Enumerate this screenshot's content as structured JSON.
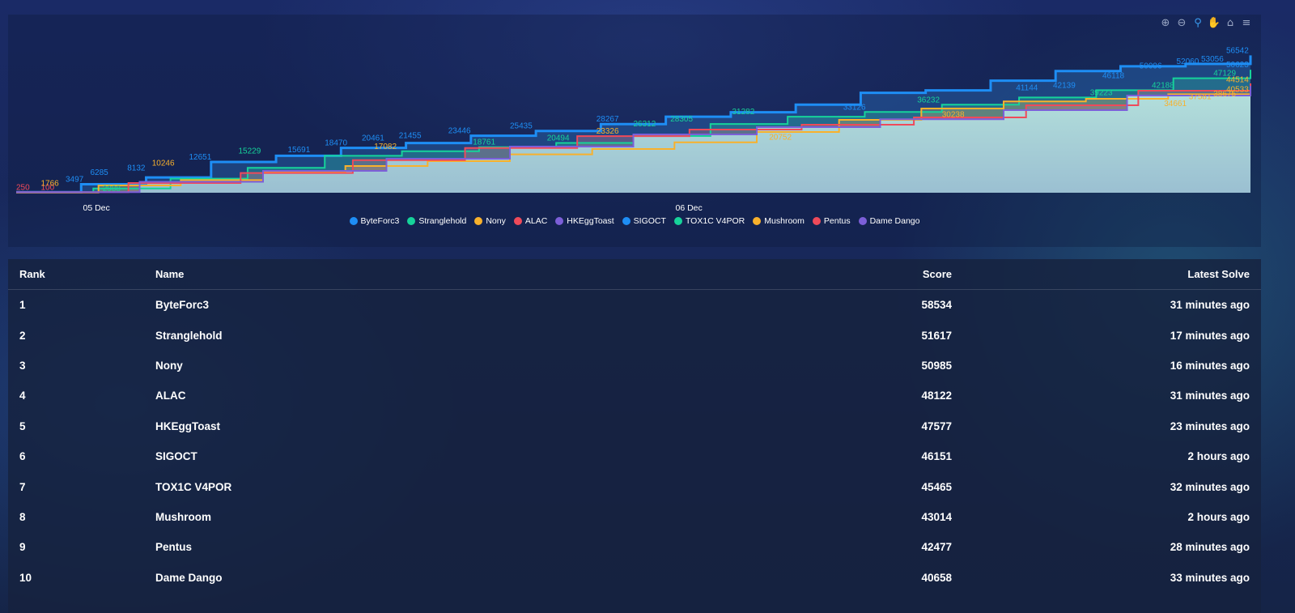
{
  "toolbar": {
    "icons": [
      "zoom-in-icon",
      "zoom-out-icon",
      "selection-zoom-icon",
      "pan-icon",
      "reset-home-icon",
      "menu-icon"
    ]
  },
  "chart_data": {
    "type": "area",
    "x_ticks": [
      "05 Dec",
      "06 Dec"
    ],
    "legend": [
      "ByteForc3",
      "Stranglehold",
      "Nony",
      "ALAC",
      "HKEggToast",
      "SIGOCT",
      "TOX1C V4POR",
      "Mushroom",
      "Pentus",
      "Dame Dango"
    ],
    "colors": {
      "ByteForc3": "#1e8ef5",
      "Stranglehold": "#16d39a",
      "Nony": "#f8b12c",
      "ALAC": "#ef4a5a",
      "HKEggToast": "#7c5fd8",
      "SIGOCT": "#1e8ef5",
      "TOX1C V4POR": "#16d39a",
      "Mushroom": "#f8b12c",
      "Pentus": "#ef4a5a",
      "Dame Dango": "#7c5fd8"
    },
    "series": [
      {
        "name": "ByteForc3",
        "values": [
          250,
          3497,
          6285,
          12651,
          15229,
          18470,
          20461,
          23446,
          25435,
          28267,
          31282,
          33126,
          36232,
          41144,
          42139,
          46118,
          50096,
          52060,
          53056,
          56542
        ]
      },
      {
        "name": "Stranglehold",
        "values": [
          250,
          1766,
          5800,
          10246,
          15229,
          17082,
          18761,
          20494,
          23326,
          28305,
          31282,
          33232,
          36232,
          39223,
          42188,
          47129,
          50623
        ]
      },
      {
        "name": "Nony",
        "values": [
          100,
          2988,
          5200,
          8600,
          11000,
          13000,
          15800,
          18000,
          20752,
          25000,
          30000,
          34661,
          37581,
          38675,
          40533,
          44514
        ]
      },
      {
        "name": "ALAC",
        "values": [
          250,
          4000,
          8132,
          13411,
          18433,
          23300,
          26000,
          28000,
          31000,
          36000,
          42000,
          45000
        ]
      },
      {
        "name": "HKEggToast",
        "values": [
          250,
          4500,
          9000,
          14000,
          19000,
          24000,
          27000,
          30238,
          34000,
          40000,
          44000
        ]
      }
    ],
    "data_labels": [
      {
        "text": "250",
        "x": 0.0,
        "y": 250,
        "color": "#ef4a5a"
      },
      {
        "text": "100",
        "x": 0.02,
        "y": 100,
        "color": "#ef4a5a"
      },
      {
        "text": "1766",
        "x": 0.02,
        "y": 1766,
        "color": "#f8b12c"
      },
      {
        "text": "3497",
        "x": 0.04,
        "y": 3497,
        "color": "#1e8ef5"
      },
      {
        "text": "2988",
        "x": 0.07,
        "y": -300,
        "color": "#16d39a"
      },
      {
        "text": "6285",
        "x": 0.06,
        "y": 6285,
        "color": "#1e8ef5"
      },
      {
        "text": "8132",
        "x": 0.09,
        "y": 8132,
        "color": "#1e8ef5"
      },
      {
        "text": "10246",
        "x": 0.11,
        "y": 10246,
        "color": "#f8b12c"
      },
      {
        "text": "12651",
        "x": 0.14,
        "y": 12651,
        "color": "#1e8ef5"
      },
      {
        "text": "15229",
        "x": 0.18,
        "y": 15229,
        "color": "#16d39a"
      },
      {
        "text": "15691",
        "x": 0.22,
        "y": 15691,
        "color": "#1e8ef5"
      },
      {
        "text": "18470",
        "x": 0.25,
        "y": 18470,
        "color": "#1e8ef5"
      },
      {
        "text": "17082",
        "x": 0.29,
        "y": 17082,
        "color": "#f8b12c"
      },
      {
        "text": "20461",
        "x": 0.28,
        "y": 20461,
        "color": "#1e8ef5"
      },
      {
        "text": "21455",
        "x": 0.31,
        "y": 21455,
        "color": "#1e8ef5"
      },
      {
        "text": "23446",
        "x": 0.35,
        "y": 23446,
        "color": "#1e8ef5"
      },
      {
        "text": "18761",
        "x": 0.37,
        "y": 18761,
        "color": "#16d39a"
      },
      {
        "text": "25435",
        "x": 0.4,
        "y": 25435,
        "color": "#1e8ef5"
      },
      {
        "text": "20494",
        "x": 0.43,
        "y": 20494,
        "color": "#16d39a"
      },
      {
        "text": "23326",
        "x": 0.47,
        "y": 23326,
        "color": "#f8b12c"
      },
      {
        "text": "28267",
        "x": 0.47,
        "y": 28267,
        "color": "#1e8ef5"
      },
      {
        "text": "26312",
        "x": 0.5,
        "y": 26312,
        "color": "#16d39a"
      },
      {
        "text": "28305",
        "x": 0.53,
        "y": 28305,
        "color": "#16d39a"
      },
      {
        "text": "31282",
        "x": 0.58,
        "y": 31282,
        "color": "#16d39a"
      },
      {
        "text": "20752",
        "x": 0.61,
        "y": 20752,
        "color": "#f8b12c"
      },
      {
        "text": "33126",
        "x": 0.67,
        "y": 33126,
        "color": "#1e8ef5"
      },
      {
        "text": "36232",
        "x": 0.73,
        "y": 36232,
        "color": "#16d39a"
      },
      {
        "text": "30238",
        "x": 0.75,
        "y": 30238,
        "color": "#f8b12c"
      },
      {
        "text": "41144",
        "x": 0.81,
        "y": 41144,
        "color": "#1e8ef5"
      },
      {
        "text": "42139",
        "x": 0.84,
        "y": 42139,
        "color": "#1e8ef5"
      },
      {
        "text": "46118",
        "x": 0.88,
        "y": 46118,
        "color": "#1e8ef5"
      },
      {
        "text": "39223",
        "x": 0.87,
        "y": 39223,
        "color": "#16d39a"
      },
      {
        "text": "50096",
        "x": 0.91,
        "y": 50096,
        "color": "#1e8ef5"
      },
      {
        "text": "42188",
        "x": 0.92,
        "y": 42188,
        "color": "#16d39a"
      },
      {
        "text": "52060",
        "x": 0.94,
        "y": 52060,
        "color": "#1e8ef5"
      },
      {
        "text": "34661",
        "x": 0.93,
        "y": 34661,
        "color": "#f8b12c"
      },
      {
        "text": "37581",
        "x": 0.95,
        "y": 37581,
        "color": "#f8b12c"
      },
      {
        "text": "53056",
        "x": 0.96,
        "y": 53056,
        "color": "#1e8ef5"
      },
      {
        "text": "47129",
        "x": 0.97,
        "y": 47129,
        "color": "#16d39a"
      },
      {
        "text": "38675",
        "x": 0.97,
        "y": 38675,
        "color": "#f8b12c"
      },
      {
        "text": "40533",
        "x": 0.985,
        "y": 40533,
        "color": "#f8b12c"
      },
      {
        "text": "44514",
        "x": 0.99,
        "y": 44514,
        "color": "#f8b12c"
      },
      {
        "text": "50623",
        "x": 0.995,
        "y": 50623,
        "color": "#1e8ef5"
      },
      {
        "text": "56542",
        "x": 1.0,
        "y": 56542,
        "color": "#1e8ef5"
      }
    ],
    "ylim": [
      0,
      60000
    ],
    "grid": false,
    "legend_position": "bottom-center"
  },
  "table": {
    "headers": {
      "rank": "Rank",
      "name": "Name",
      "score": "Score",
      "latest": "Latest Solve"
    },
    "rows": [
      {
        "rank": "1",
        "name": "ByteForc3",
        "score": "58534",
        "latest": "31 minutes ago"
      },
      {
        "rank": "2",
        "name": "Stranglehold",
        "score": "51617",
        "latest": "17 minutes ago"
      },
      {
        "rank": "3",
        "name": "Nony",
        "score": "50985",
        "latest": "16 minutes ago"
      },
      {
        "rank": "4",
        "name": "ALAC",
        "score": "48122",
        "latest": "31 minutes ago"
      },
      {
        "rank": "5",
        "name": "HKEggToast",
        "score": "47577",
        "latest": "23 minutes ago"
      },
      {
        "rank": "6",
        "name": "SIGOCT",
        "score": "46151",
        "latest": "2 hours ago"
      },
      {
        "rank": "7",
        "name": "TOX1C V4POR",
        "score": "45465",
        "latest": "32 minutes ago"
      },
      {
        "rank": "8",
        "name": "Mushroom",
        "score": "43014",
        "latest": "2 hours ago"
      },
      {
        "rank": "9",
        "name": "Pentus",
        "score": "42477",
        "latest": "28 minutes ago"
      },
      {
        "rank": "10",
        "name": "Dame Dango",
        "score": "40658",
        "latest": "33 minutes ago"
      }
    ]
  }
}
